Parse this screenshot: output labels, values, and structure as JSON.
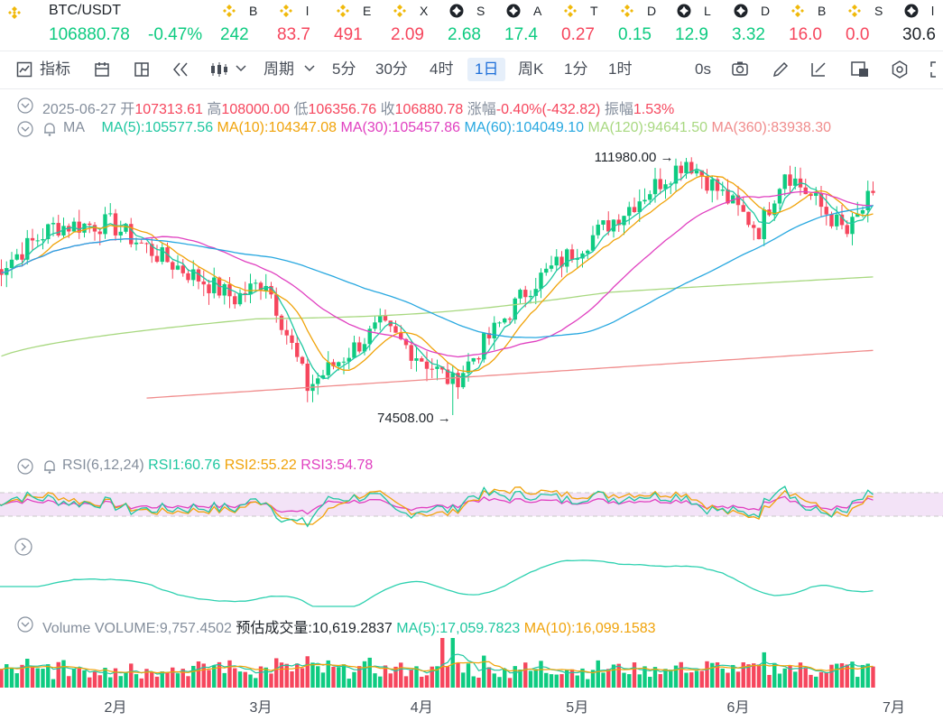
{
  "ticker": {
    "pair": "BTC/USDT",
    "price": "106880.78",
    "change": "-0.47%",
    "items": [
      {
        "label": "B",
        "value": "242",
        "dir": "up",
        "icon": "bnb"
      },
      {
        "label": "l",
        "value": "83.7",
        "dir": "dn",
        "icon": "bnb"
      },
      {
        "label": "E",
        "value": "491",
        "dir": "dn",
        "icon": "bnb"
      },
      {
        "label": "X",
        "value": "2.09",
        "dir": "dn",
        "icon": "bnb"
      },
      {
        "label": "S",
        "value": "2.68",
        "dir": "up",
        "icon": "coin"
      },
      {
        "label": "A",
        "value": "17.4",
        "dir": "up",
        "icon": "coin"
      },
      {
        "label": "T",
        "value": "0.27",
        "dir": "dn",
        "icon": "bnb"
      },
      {
        "label": "D",
        "value": "0.15",
        "dir": "up",
        "icon": "bnb"
      },
      {
        "label": "L",
        "value": "12.9",
        "dir": "up",
        "icon": "coin"
      },
      {
        "label": "D",
        "value": "3.32",
        "dir": "up",
        "icon": "coin"
      },
      {
        "label": "B",
        "value": "16.0",
        "dir": "dn",
        "icon": "bnb"
      },
      {
        "label": "S",
        "value": "0.0",
        "dir": "dn",
        "icon": "bnb"
      },
      {
        "label": "l",
        "value": "30.6",
        "dir": "blk",
        "icon": "coin"
      }
    ]
  },
  "toolbar": {
    "indicators": "指标",
    "period": "周期",
    "intervals": [
      "5分",
      "30分",
      "4时",
      "1日",
      "周K",
      "1分",
      "1时"
    ],
    "active_interval": "1日",
    "right_label": "0s"
  },
  "ohlc": {
    "date": "2025-06-27",
    "open_label": "开",
    "open": "107313.61",
    "high_label": "高",
    "high": "108000.00",
    "low_label": "低",
    "low": "106356.76",
    "close_label": "收",
    "close": "106880.78",
    "chg_label": "涨幅",
    "chg": "-0.40%(-432.82)",
    "amp_label": "振幅",
    "amp": "1.53%"
  },
  "ma": {
    "label": "MA",
    "ma5": "MA(5):105577.56",
    "ma10": "MA(10):104347.08",
    "ma30": "MA(30):105457.86",
    "ma60": "MA(60):104049.10",
    "ma120": "MA(120):94641.50",
    "ma360": "MA(360):83938.30"
  },
  "rsi": {
    "label": "RSI(6,12,24)",
    "rsi1": "RSI1:60.76",
    "rsi2": "RSI2:55.22",
    "rsi3": "RSI3:54.78"
  },
  "volume": {
    "label": "Volume",
    "vol": "VOLUME:9,757.4502",
    "est": "预估成交量:10,619.2837",
    "ma5": "MA(5):17,059.7823",
    "ma10": "MA(10):16,099.1583"
  },
  "colors": {
    "up": "#0ecb81",
    "down": "#f6465d",
    "ma5": "#1fc7a0",
    "ma10": "#f0a30a",
    "ma30": "#e040c0",
    "ma60": "#28a8e0",
    "ma120": "#a8d880",
    "ma360": "#f08c8c"
  },
  "chart_data": {
    "type": "candlestick",
    "title": "BTC/USDT 1日",
    "x_labels": [
      "2月",
      "3月",
      "4月",
      "5月",
      "6月",
      "7月"
    ],
    "annotations": [
      {
        "text": "111980.00",
        "kind": "high",
        "date": "2025-05-22"
      },
      {
        "text": "74508.00",
        "kind": "low",
        "date": "2025-04-07"
      }
    ],
    "price_range": [
      74508,
      111980
    ],
    "series_close_anchors": [
      {
        "date": "2025-01-08",
        "close": 95000
      },
      {
        "date": "2025-01-20",
        "close": 102000
      },
      {
        "date": "2025-01-31",
        "close": 102400
      },
      {
        "date": "2025-02-10",
        "close": 97400
      },
      {
        "date": "2025-02-24",
        "close": 91500
      },
      {
        "date": "2025-03-02",
        "close": 94200
      },
      {
        "date": "2025-03-10",
        "close": 78600
      },
      {
        "date": "2025-03-24",
        "close": 87500
      },
      {
        "date": "2025-04-07",
        "close": 79200
      },
      {
        "date": "2025-04-22",
        "close": 93400
      },
      {
        "date": "2025-05-08",
        "close": 103000
      },
      {
        "date": "2025-05-22",
        "close": 111700
      },
      {
        "date": "2025-06-05",
        "close": 101500
      },
      {
        "date": "2025-06-10",
        "close": 110200
      },
      {
        "date": "2025-06-22",
        "close": 100900
      },
      {
        "date": "2025-06-27",
        "close": 106880.78
      }
    ]
  }
}
